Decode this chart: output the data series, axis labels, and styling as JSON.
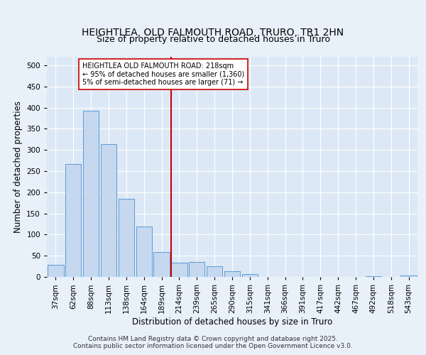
{
  "title": "HEIGHTLEA, OLD FALMOUTH ROAD, TRURO, TR1 2HN",
  "subtitle": "Size of property relative to detached houses in Truro",
  "xlabel": "Distribution of detached houses by size in Truro",
  "ylabel": "Number of detached properties",
  "categories": [
    "37sqm",
    "62sqm",
    "88sqm",
    "113sqm",
    "138sqm",
    "164sqm",
    "189sqm",
    "214sqm",
    "239sqm",
    "265sqm",
    "290sqm",
    "315sqm",
    "341sqm",
    "366sqm",
    "391sqm",
    "417sqm",
    "442sqm",
    "467sqm",
    "492sqm",
    "518sqm",
    "543sqm"
  ],
  "values": [
    28,
    267,
    393,
    313,
    184,
    119,
    59,
    33,
    35,
    25,
    14,
    6,
    0,
    0,
    0,
    0,
    0,
    0,
    2,
    0,
    4
  ],
  "bar_color": "#c5d8ef",
  "bar_edge_color": "#5b9bd5",
  "reference_line_color": "#cc0000",
  "annotation_text": "HEIGHTLEA OLD FALMOUTH ROAD: 218sqm\n← 95% of detached houses are smaller (1,360)\n5% of semi-detached houses are larger (71) →",
  "annotation_box_color": "#ffffff",
  "annotation_box_edge": "#cc0000",
  "ylim": [
    0,
    520
  ],
  "yticks": [
    0,
    50,
    100,
    150,
    200,
    250,
    300,
    350,
    400,
    450,
    500
  ],
  "footer": "Contains HM Land Registry data © Crown copyright and database right 2025.\nContains public sector information licensed under the Open Government Licence v3.0.",
  "bg_color": "#dce8f5",
  "fig_color": "#e8f0fa",
  "title_fontsize": 10,
  "subtitle_fontsize": 9,
  "axis_label_fontsize": 8.5,
  "tick_fontsize": 7.5,
  "footer_fontsize": 6.5,
  "annotation_fontsize": 7
}
